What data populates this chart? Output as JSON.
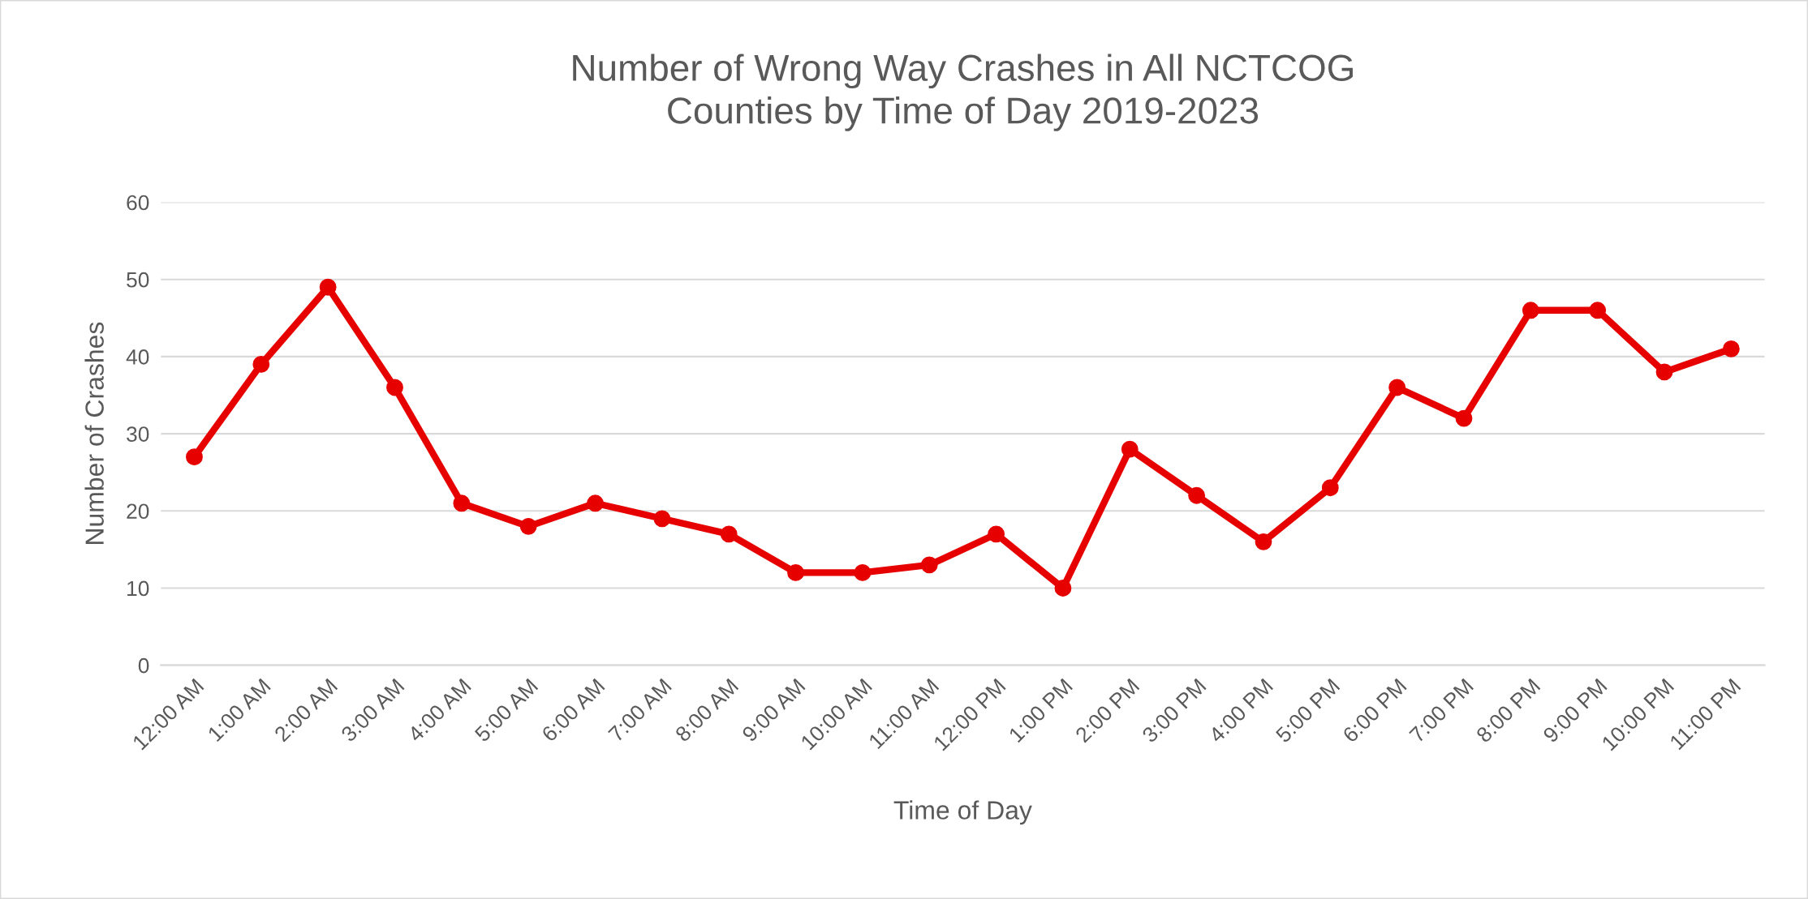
{
  "chart_data": {
    "type": "line",
    "title": "Number of Wrong Way Crashes in All NCTCOG\nCounties by Time of Day 2019-2023",
    "xlabel": "Time of Day",
    "ylabel": "Number of Crashes",
    "categories": [
      "12:00 AM",
      "1:00 AM",
      "2:00 AM",
      "3:00 AM",
      "4:00 AM",
      "5:00 AM",
      "6:00 AM",
      "7:00 AM",
      "8:00 AM",
      "9:00 AM",
      "10:00 AM",
      "11:00 AM",
      "12:00 PM",
      "1:00 PM",
      "2:00 PM",
      "3:00 PM",
      "4:00 PM",
      "5:00 PM",
      "6:00 PM",
      "7:00 PM",
      "8:00 PM",
      "9:00 PM",
      "10:00 PM",
      "11:00 PM"
    ],
    "series": [
      {
        "color": "#e60000",
        "values": [
          27,
          39,
          49,
          36,
          21,
          18,
          21,
          19,
          17,
          12,
          12,
          13,
          17,
          10,
          28,
          22,
          16,
          23,
          36,
          32,
          46,
          46,
          38,
          41
        ]
      }
    ],
    "ylim": [
      0,
      60
    ],
    "yticks": [
      0,
      10,
      20,
      30,
      40,
      50,
      60
    ],
    "grid": "y",
    "marker": "circle",
    "line_style": "solid"
  }
}
